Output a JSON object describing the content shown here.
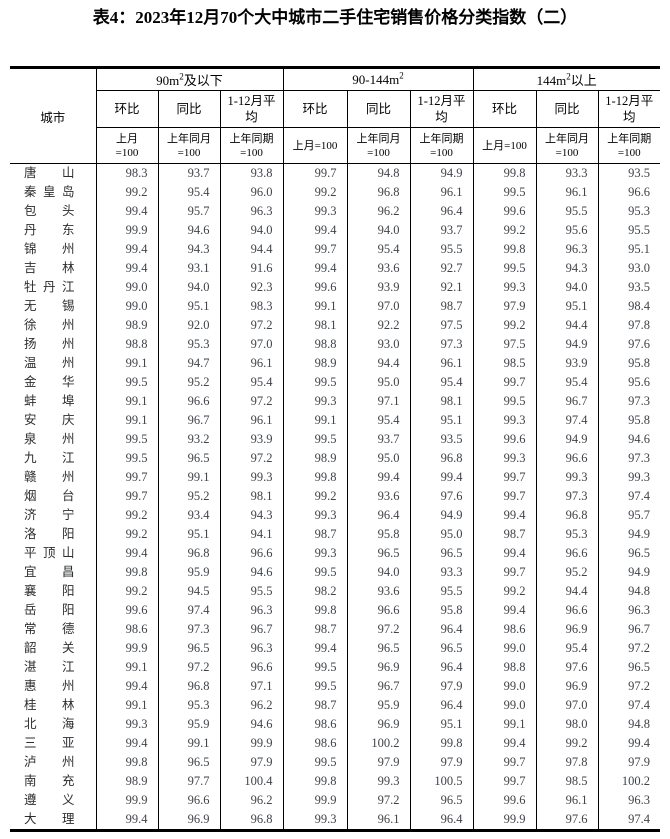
{
  "title": "表4：2023年12月70个大中城市二手住宅销售价格分类指数（二）",
  "table": {
    "city_header": "城市",
    "groups": [
      {
        "name_prefix": "90m",
        "sup": "2",
        "name_suffix": "及以下",
        "cols": [
          {
            "label": "环比",
            "base": "上月\n=100"
          },
          {
            "label": "同比",
            "base": "上年同月\n=100"
          },
          {
            "label": "1-12月平\n均",
            "base": "上年同期\n=100"
          }
        ]
      },
      {
        "name_prefix": "90-144m",
        "sup": "2",
        "name_suffix": "",
        "cols": [
          {
            "label": "环比",
            "base": "上月=100"
          },
          {
            "label": "同比",
            "base": "上年同月\n=100"
          },
          {
            "label": "1-12月平\n均",
            "base": "上年同期\n=100"
          }
        ]
      },
      {
        "name_prefix": "144m",
        "sup": "2",
        "name_suffix": "以上",
        "cols": [
          {
            "label": "环比",
            "base": "上月=100"
          },
          {
            "label": "同比",
            "base": "上年同月\n=100"
          },
          {
            "label": "1-12月平\n均",
            "base": "上年同期\n=100"
          }
        ]
      }
    ],
    "rows": [
      {
        "city": "唐山",
        "values": [
          "98.3",
          "93.7",
          "93.8",
          "99.7",
          "94.8",
          "94.9",
          "99.8",
          "93.3",
          "93.5"
        ]
      },
      {
        "city": "秦皇岛",
        "values": [
          "99.2",
          "95.4",
          "96.0",
          "99.2",
          "96.8",
          "96.1",
          "99.5",
          "96.1",
          "96.6"
        ]
      },
      {
        "city": "包头",
        "values": [
          "99.4",
          "95.7",
          "96.3",
          "99.3",
          "96.2",
          "96.4",
          "99.6",
          "95.5",
          "95.3"
        ]
      },
      {
        "city": "丹东",
        "values": [
          "99.9",
          "94.6",
          "94.0",
          "99.4",
          "94.0",
          "93.7",
          "99.2",
          "95.6",
          "95.5"
        ]
      },
      {
        "city": "锦州",
        "values": [
          "99.4",
          "94.3",
          "94.4",
          "99.7",
          "95.4",
          "95.5",
          "99.8",
          "96.3",
          "95.1"
        ]
      },
      {
        "city": "吉林",
        "values": [
          "99.4",
          "93.1",
          "91.6",
          "99.4",
          "93.6",
          "92.7",
          "99.5",
          "94.3",
          "93.0"
        ]
      },
      {
        "city": "牡丹江",
        "values": [
          "99.0",
          "94.0",
          "92.3",
          "99.6",
          "93.9",
          "92.1",
          "99.3",
          "94.0",
          "93.5"
        ]
      },
      {
        "city": "无锡",
        "values": [
          "99.0",
          "95.1",
          "98.3",
          "99.1",
          "97.0",
          "98.7",
          "97.9",
          "95.1",
          "98.4"
        ]
      },
      {
        "city": "徐州",
        "values": [
          "98.9",
          "92.0",
          "97.2",
          "98.1",
          "92.2",
          "97.5",
          "99.2",
          "94.4",
          "97.8"
        ]
      },
      {
        "city": "扬州",
        "values": [
          "98.8",
          "95.3",
          "97.0",
          "98.8",
          "93.0",
          "97.3",
          "97.5",
          "94.9",
          "97.6"
        ]
      },
      {
        "city": "温州",
        "values": [
          "99.1",
          "94.7",
          "96.1",
          "98.9",
          "94.4",
          "96.1",
          "98.5",
          "93.9",
          "95.8"
        ]
      },
      {
        "city": "金华",
        "values": [
          "99.5",
          "95.2",
          "95.4",
          "99.5",
          "95.0",
          "95.4",
          "99.7",
          "95.4",
          "95.6"
        ]
      },
      {
        "city": "蚌埠",
        "values": [
          "99.1",
          "96.6",
          "97.2",
          "99.3",
          "97.1",
          "98.1",
          "99.5",
          "96.7",
          "97.3"
        ]
      },
      {
        "city": "安庆",
        "values": [
          "99.1",
          "96.7",
          "96.1",
          "99.1",
          "95.4",
          "95.1",
          "99.3",
          "97.4",
          "95.8"
        ]
      },
      {
        "city": "泉州",
        "values": [
          "99.5",
          "93.2",
          "93.9",
          "99.5",
          "93.7",
          "93.5",
          "99.6",
          "94.9",
          "94.6"
        ]
      },
      {
        "city": "九江",
        "values": [
          "99.5",
          "96.5",
          "97.2",
          "98.9",
          "95.0",
          "96.8",
          "99.3",
          "96.6",
          "97.3"
        ]
      },
      {
        "city": "赣州",
        "values": [
          "99.7",
          "99.1",
          "99.3",
          "99.8",
          "99.4",
          "99.4",
          "99.7",
          "99.3",
          "99.3"
        ]
      },
      {
        "city": "烟台",
        "values": [
          "99.7",
          "95.2",
          "98.1",
          "99.2",
          "93.6",
          "97.6",
          "99.7",
          "97.3",
          "97.4"
        ]
      },
      {
        "city": "济宁",
        "values": [
          "99.2",
          "93.4",
          "94.3",
          "99.3",
          "96.4",
          "94.9",
          "99.4",
          "96.8",
          "95.7"
        ]
      },
      {
        "city": "洛阳",
        "values": [
          "99.2",
          "95.1",
          "94.1",
          "98.7",
          "95.8",
          "95.0",
          "98.7",
          "95.3",
          "94.9"
        ]
      },
      {
        "city": "平顶山",
        "values": [
          "99.4",
          "96.8",
          "96.6",
          "99.3",
          "96.5",
          "96.5",
          "99.4",
          "96.6",
          "96.5"
        ]
      },
      {
        "city": "宜昌",
        "values": [
          "99.8",
          "95.9",
          "94.6",
          "99.5",
          "94.0",
          "93.3",
          "99.7",
          "95.2",
          "94.9"
        ]
      },
      {
        "city": "襄阳",
        "values": [
          "99.2",
          "94.5",
          "95.5",
          "98.2",
          "93.6",
          "95.5",
          "99.2",
          "94.4",
          "94.8"
        ]
      },
      {
        "city": "岳阳",
        "values": [
          "99.6",
          "97.4",
          "96.3",
          "99.8",
          "96.6",
          "95.8",
          "99.4",
          "96.6",
          "96.3"
        ]
      },
      {
        "city": "常德",
        "values": [
          "98.6",
          "97.3",
          "96.7",
          "98.7",
          "97.2",
          "96.4",
          "98.6",
          "96.9",
          "96.7"
        ]
      },
      {
        "city": "韶关",
        "values": [
          "99.9",
          "96.5",
          "96.3",
          "99.4",
          "96.5",
          "96.5",
          "99.0",
          "95.4",
          "97.2"
        ]
      },
      {
        "city": "湛江",
        "values": [
          "99.1",
          "97.2",
          "96.6",
          "99.5",
          "96.9",
          "96.4",
          "98.8",
          "97.6",
          "96.5"
        ]
      },
      {
        "city": "惠州",
        "values": [
          "99.4",
          "96.8",
          "97.1",
          "99.5",
          "96.7",
          "97.9",
          "99.0",
          "96.9",
          "97.2"
        ]
      },
      {
        "city": "桂林",
        "values": [
          "99.1",
          "95.3",
          "96.2",
          "98.7",
          "95.9",
          "96.4",
          "99.0",
          "97.0",
          "97.4"
        ]
      },
      {
        "city": "北海",
        "values": [
          "99.3",
          "95.9",
          "94.6",
          "98.6",
          "96.9",
          "95.1",
          "99.1",
          "98.0",
          "94.8"
        ]
      },
      {
        "city": "三亚",
        "values": [
          "99.4",
          "99.1",
          "99.9",
          "98.6",
          "100.2",
          "99.8",
          "99.4",
          "99.2",
          "99.4"
        ]
      },
      {
        "city": "泸州",
        "values": [
          "99.8",
          "96.5",
          "97.9",
          "99.5",
          "97.9",
          "97.9",
          "99.7",
          "97.8",
          "97.9"
        ]
      },
      {
        "city": "南充",
        "values": [
          "98.9",
          "97.7",
          "100.4",
          "99.8",
          "99.3",
          "100.5",
          "99.7",
          "98.5",
          "100.2"
        ]
      },
      {
        "city": "遵义",
        "values": [
          "99.9",
          "96.6",
          "96.2",
          "99.9",
          "97.2",
          "96.5",
          "99.6",
          "96.1",
          "96.3"
        ]
      },
      {
        "city": "大理",
        "values": [
          "99.4",
          "96.9",
          "96.8",
          "99.3",
          "96.1",
          "96.4",
          "99.9",
          "97.6",
          "97.4"
        ]
      }
    ]
  }
}
